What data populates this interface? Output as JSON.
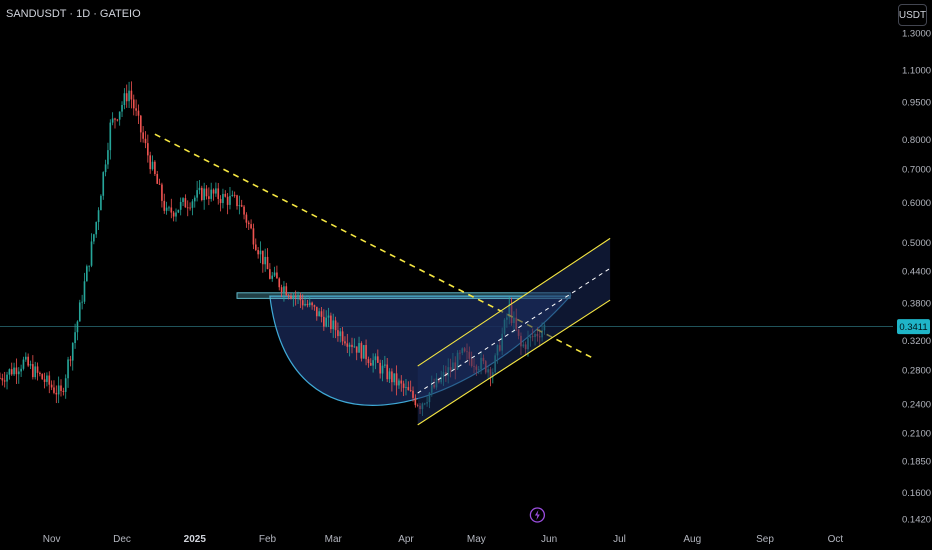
{
  "header": {
    "symbol_label": "SANDUSDT · 1D · GATEIO",
    "currency_button": "USDT"
  },
  "price_axis": {
    "ticks": [
      "1.3000",
      "1.1000",
      "0.9500",
      "0.8000",
      "0.7000",
      "0.6000",
      "0.5000",
      "0.4400",
      "0.3800",
      "0.3200",
      "0.2800",
      "0.2400",
      "0.2100",
      "0.1850",
      "0.1600",
      "0.1420"
    ],
    "current_price": "0.3411"
  },
  "time_axis": {
    "ticks": [
      {
        "label": "Nov",
        "bold": false
      },
      {
        "label": "Dec",
        "bold": false
      },
      {
        "label": "2025",
        "bold": true
      },
      {
        "label": "Feb",
        "bold": false
      },
      {
        "label": "Mar",
        "bold": false
      },
      {
        "label": "Apr",
        "bold": false
      },
      {
        "label": "May",
        "bold": false
      },
      {
        "label": "Jun",
        "bold": false
      },
      {
        "label": "Jul",
        "bold": false
      },
      {
        "label": "Aug",
        "bold": false
      },
      {
        "label": "Sep",
        "bold": false
      },
      {
        "label": "Oct",
        "bold": false
      }
    ]
  },
  "colors": {
    "background": "#000000",
    "up_candle": "#26a69a",
    "down_candle": "#ef5350",
    "trendline": "#f5e642",
    "channel": "#f5e642",
    "cup_fill": "#1a2a5a",
    "cup_stroke": "#3fa9d6",
    "resistance": "#5fb8c9",
    "price_label": "#1fb5c8"
  },
  "chart_data": {
    "type": "candlestick",
    "symbol": "SANDUSDT",
    "interval": "1D",
    "exchange": "GATEIO",
    "y_scale": "log",
    "ylim": [
      0.135,
      1.38
    ],
    "x_range": [
      "2024-10-10",
      "2025-10-20"
    ],
    "current_price": 0.3411,
    "price_path_keypoints": [
      {
        "date": "2024-10-10",
        "price": 0.27
      },
      {
        "date": "2024-10-20",
        "price": 0.29
      },
      {
        "date": "2024-11-05",
        "price": 0.25
      },
      {
        "date": "2024-11-12",
        "price": 0.35
      },
      {
        "date": "2024-11-20",
        "price": 0.55
      },
      {
        "date": "2024-11-26",
        "price": 0.85
      },
      {
        "date": "2024-12-04",
        "price": 1.0
      },
      {
        "date": "2024-12-10",
        "price": 0.8
      },
      {
        "date": "2024-12-20",
        "price": 0.57
      },
      {
        "date": "2025-01-05",
        "price": 0.63
      },
      {
        "date": "2025-01-20",
        "price": 0.6
      },
      {
        "date": "2025-02-02",
        "price": 0.43
      },
      {
        "date": "2025-02-20",
        "price": 0.37
      },
      {
        "date": "2025-03-15",
        "price": 0.3
      },
      {
        "date": "2025-04-07",
        "price": 0.24
      },
      {
        "date": "2025-04-25",
        "price": 0.3
      },
      {
        "date": "2025-05-08",
        "price": 0.28
      },
      {
        "date": "2025-05-15",
        "price": 0.37
      },
      {
        "date": "2025-05-20",
        "price": 0.31
      },
      {
        "date": "2025-05-30",
        "price": 0.341
      }
    ],
    "annotations": {
      "descending_trendline": {
        "from": {
          "date": "2024-12-15",
          "price": 0.82
        },
        "to": {
          "date": "2025-06-20",
          "price": 0.295
        }
      },
      "resistance_zone": {
        "from_date": "2025-01-19",
        "to_date": "2025-06-10",
        "low": 0.388,
        "high": 0.398
      },
      "cup_pattern": {
        "from_date": "2025-02-02",
        "to_date": "2025-06-10",
        "bottom": 0.235
      },
      "ascending_channel": {
        "upper": {
          "from": {
            "date": "2025-04-06",
            "price": 0.285
          },
          "to": {
            "date": "2025-06-27",
            "price": 0.51
          }
        },
        "middle": {
          "from": {
            "date": "2025-04-06",
            "price": 0.252
          },
          "to": {
            "date": "2025-06-27",
            "price": 0.445
          }
        },
        "lower": {
          "from": {
            "date": "2025-04-06",
            "price": 0.218
          },
          "to": {
            "date": "2025-06-27",
            "price": 0.385
          }
        }
      }
    }
  }
}
